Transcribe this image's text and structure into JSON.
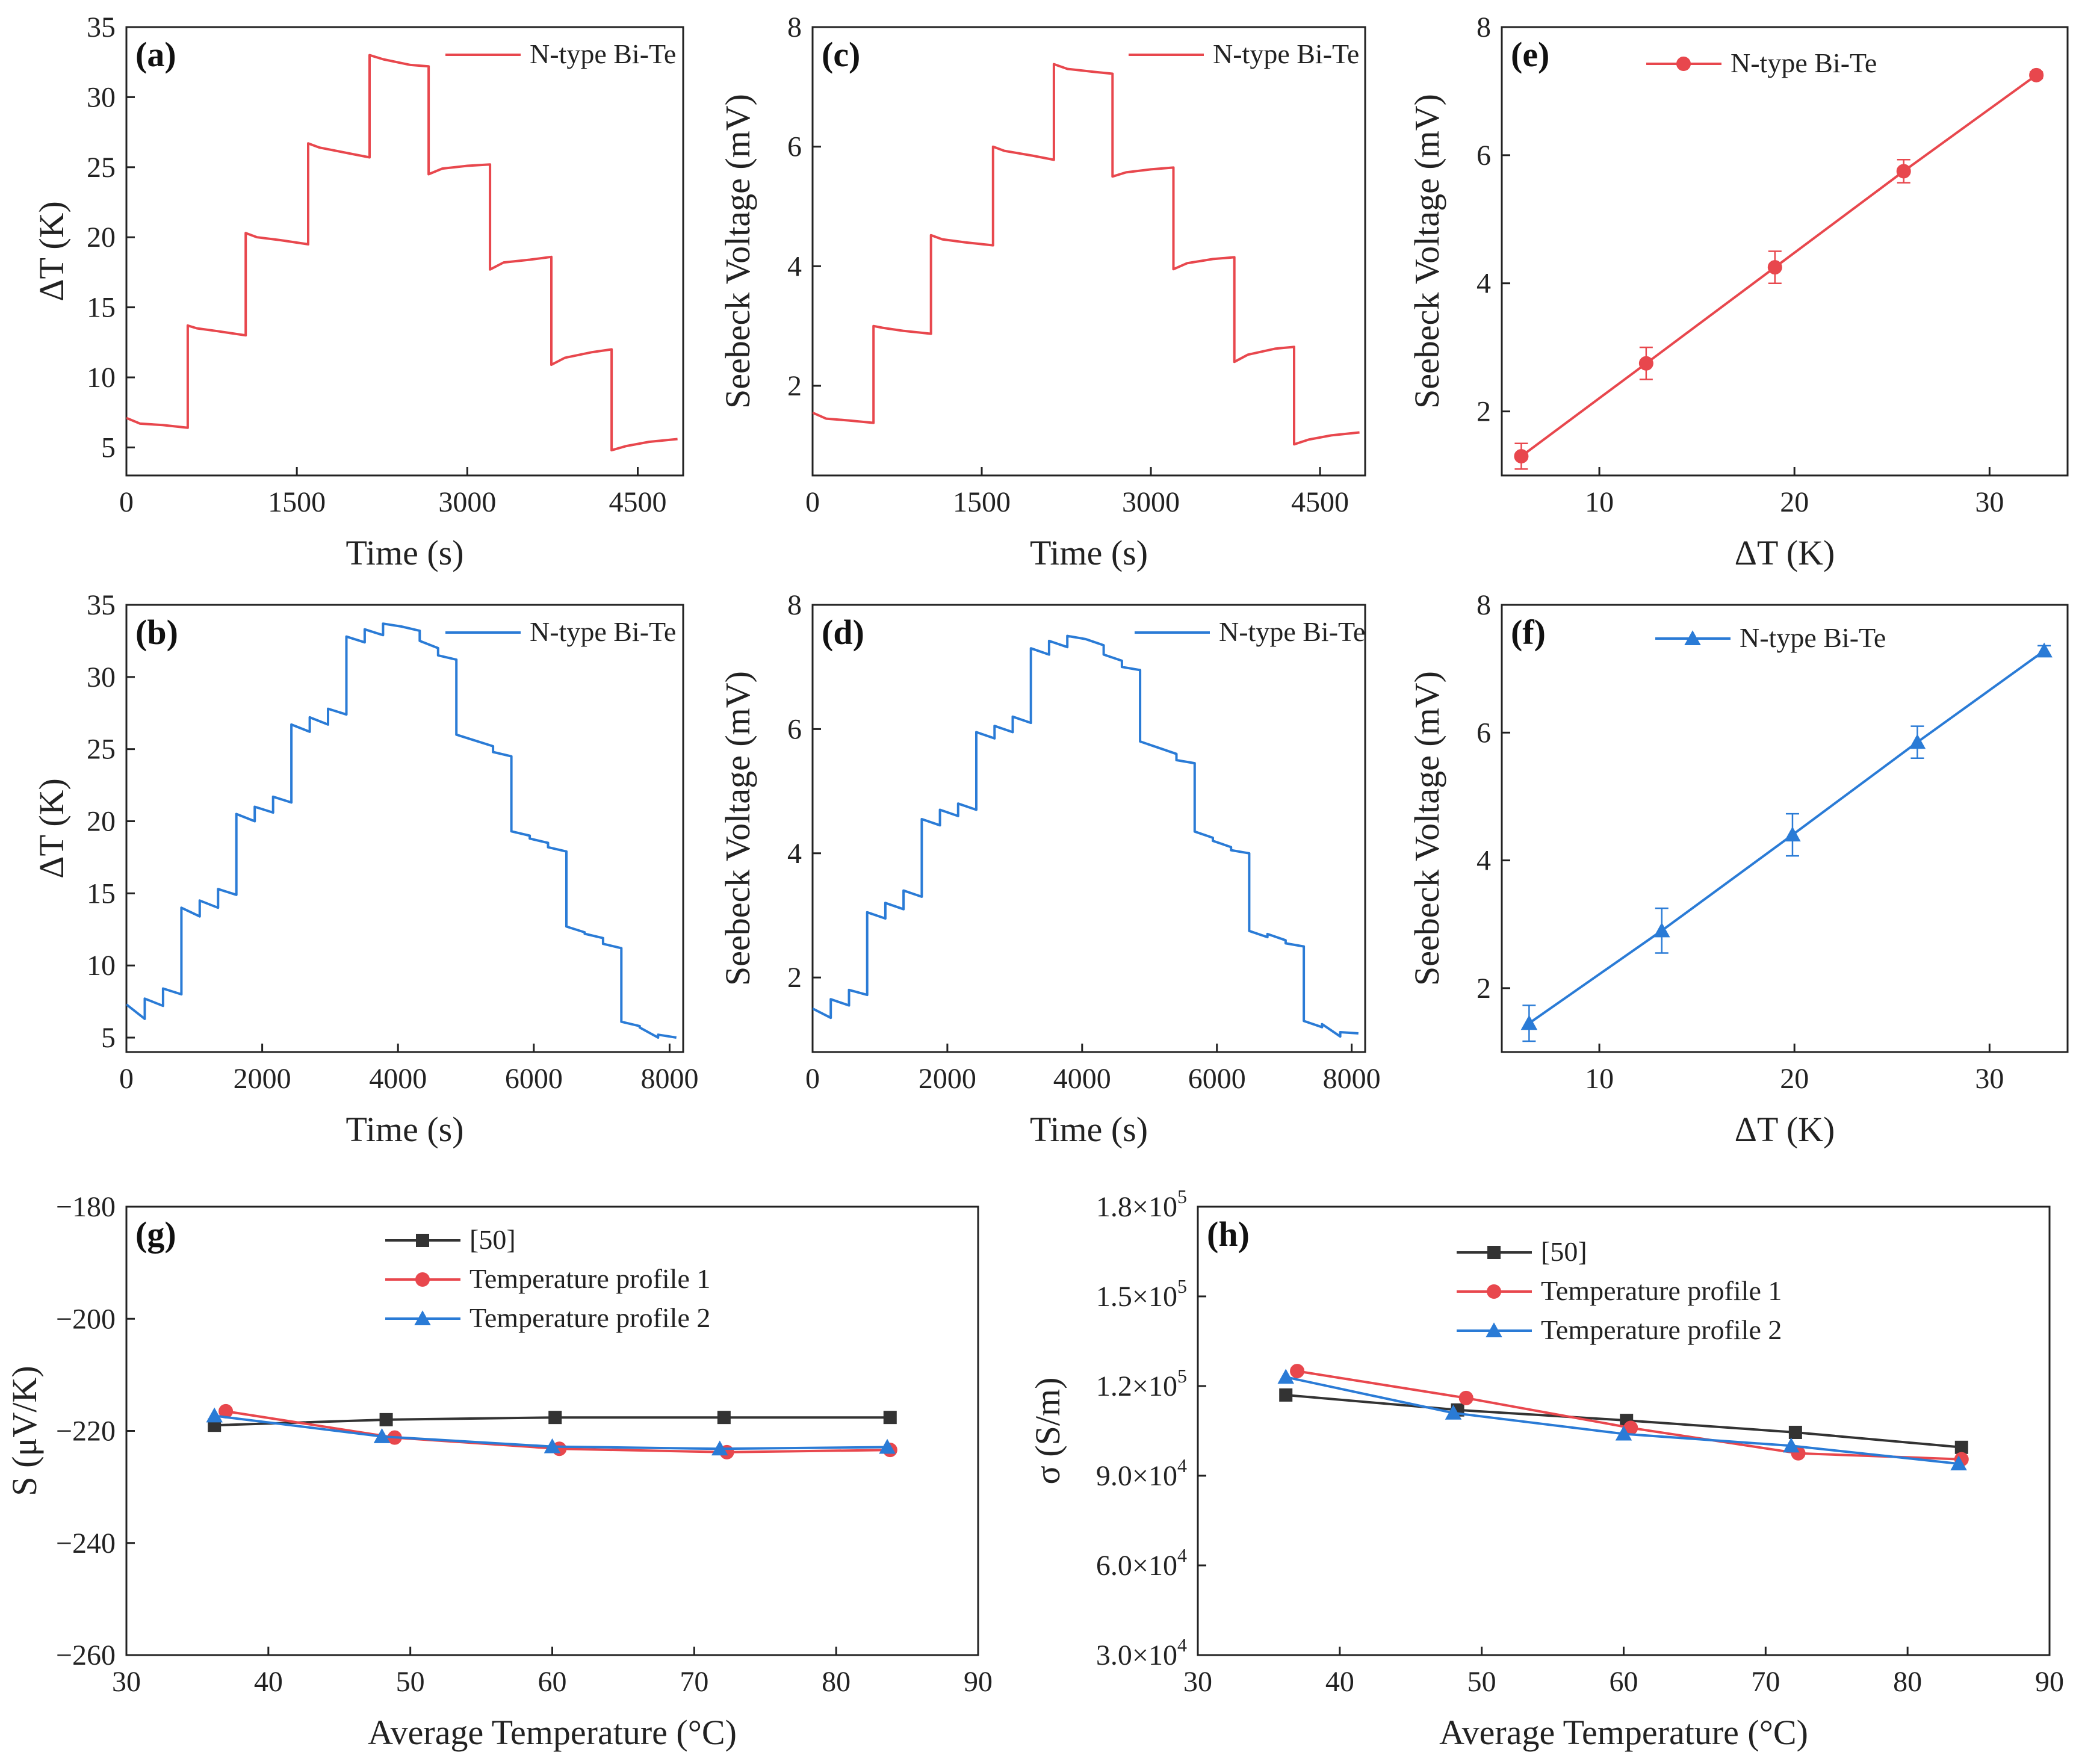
{
  "colors": {
    "red": "#e8474d",
    "blue": "#2a7bd6",
    "black": "#333333"
  },
  "chart_data": [
    {
      "id": "a",
      "panel_label": "(a)",
      "type": "line",
      "xlabel": "Time (s)",
      "ylabel": "ΔT (K)",
      "xlim": [
        0,
        4900
      ],
      "ylim": [
        3,
        35
      ],
      "xticks": [
        0,
        1500,
        3000,
        4500
      ],
      "xtick_labels": [
        "0",
        "1500",
        "3000",
        "4500"
      ],
      "yticks": [
        5,
        10,
        15,
        20,
        25,
        30,
        35
      ],
      "ytick_labels": [
        "5",
        "10",
        "15",
        "20",
        "25",
        "30",
        "35"
      ],
      "legend": [
        "N-type Bi-Te"
      ],
      "legend_position": "top-right",
      "series": [
        {
          "name": "N-type Bi-Te",
          "color": "red",
          "marker": "none",
          "x": [
            0,
            120,
            320,
            540,
            540,
            620,
            800,
            1050,
            1050,
            1150,
            1350,
            1600,
            1600,
            1700,
            1950,
            2140,
            2140,
            2260,
            2500,
            2660,
            2660,
            2780,
            3000,
            3200,
            3200,
            3320,
            3550,
            3740,
            3740,
            3860,
            4100,
            4270,
            4270,
            4400,
            4600,
            4850
          ],
          "y": [
            7.1,
            6.7,
            6.6,
            6.4,
            13.7,
            13.5,
            13.3,
            13.0,
            20.3,
            20.0,
            19.8,
            19.5,
            26.7,
            26.4,
            26.0,
            25.7,
            33.0,
            32.7,
            32.3,
            32.2,
            24.5,
            24.9,
            25.1,
            25.2,
            17.7,
            18.2,
            18.4,
            18.6,
            10.9,
            11.4,
            11.8,
            12.0,
            4.8,
            5.1,
            5.4,
            5.6
          ]
        }
      ]
    },
    {
      "id": "b",
      "panel_label": "(b)",
      "type": "line",
      "xlabel": "Time (s)",
      "ylabel": "ΔT (K)",
      "xlim": [
        0,
        8200
      ],
      "ylim": [
        4,
        35
      ],
      "xticks": [
        0,
        2000,
        4000,
        6000,
        8000
      ],
      "xtick_labels": [
        "0",
        "2000",
        "4000",
        "6000",
        "8000"
      ],
      "yticks": [
        5,
        10,
        15,
        20,
        25,
        30,
        35
      ],
      "ytick_labels": [
        "5",
        "10",
        "15",
        "20",
        "25",
        "30",
        "35"
      ],
      "legend": [
        "N-type Bi-Te"
      ],
      "legend_position": "top-right",
      "series": [
        {
          "name": "N-type Bi-Te",
          "color": "blue",
          "marker": "none",
          "x": [
            0,
            270,
            270,
            540,
            540,
            810,
            810,
            1080,
            1080,
            1350,
            1350,
            1620,
            1620,
            1890,
            1890,
            2160,
            2160,
            2430,
            2430,
            2700,
            2700,
            2970,
            2970,
            3240,
            3240,
            3510,
            3510,
            3780,
            3780,
            4050,
            4050,
            4320,
            4320,
            4590,
            4590,
            4860,
            4860,
            5130,
            5130,
            5400,
            5400,
            5670,
            5670,
            5940,
            5940,
            6210,
            6210,
            6480,
            6480,
            6750,
            6750,
            7020,
            7020,
            7290,
            7290,
            7560,
            7560,
            7830,
            7830,
            8100
          ],
          "y": [
            7.3,
            6.3,
            7.7,
            7.2,
            8.4,
            8.0,
            14.0,
            13.4,
            14.5,
            14.0,
            15.3,
            14.9,
            20.5,
            20.0,
            21.0,
            20.6,
            21.7,
            21.3,
            26.7,
            26.2,
            27.2,
            26.7,
            27.8,
            27.4,
            32.8,
            32.4,
            33.3,
            32.9,
            33.7,
            33.5,
            33.5,
            33.2,
            32.5,
            32.0,
            31.5,
            31.2,
            26.0,
            25.6,
            25.6,
            25.2,
            24.8,
            24.5,
            19.3,
            19.0,
            18.8,
            18.5,
            18.2,
            17.9,
            12.7,
            12.3,
            12.2,
            11.9,
            11.5,
            11.2,
            6.1,
            5.8,
            5.7,
            5.0,
            5.2,
            5.0
          ]
        }
      ]
    },
    {
      "id": "c",
      "panel_label": "(c)",
      "type": "line",
      "xlabel": "Time (s)",
      "ylabel": "Seebeck Voltage (mV)",
      "xlim": [
        0,
        4900
      ],
      "ylim": [
        0.5,
        8
      ],
      "xticks": [
        0,
        1500,
        3000,
        4500
      ],
      "xtick_labels": [
        "0",
        "1500",
        "3000",
        "4500"
      ],
      "yticks": [
        2,
        4,
        6,
        8
      ],
      "ytick_labels": [
        "2",
        "4",
        "6",
        "8"
      ],
      "legend": [
        "N-type Bi-Te"
      ],
      "legend_position": "top-right",
      "series": [
        {
          "name": "N-type Bi-Te",
          "color": "red",
          "marker": "none",
          "x": [
            0,
            120,
            320,
            540,
            540,
            620,
            800,
            1050,
            1050,
            1150,
            1350,
            1600,
            1600,
            1700,
            1950,
            2140,
            2140,
            2260,
            2500,
            2660,
            2660,
            2780,
            3000,
            3200,
            3200,
            3320,
            3550,
            3740,
            3740,
            3860,
            4100,
            4270,
            4270,
            4400,
            4600,
            4850
          ],
          "y": [
            1.55,
            1.45,
            1.42,
            1.38,
            3.0,
            2.97,
            2.92,
            2.87,
            4.52,
            4.45,
            4.4,
            4.35,
            6.0,
            5.93,
            5.85,
            5.78,
            7.38,
            7.3,
            7.25,
            7.22,
            5.5,
            5.57,
            5.62,
            5.65,
            3.95,
            4.05,
            4.12,
            4.15,
            2.4,
            2.52,
            2.62,
            2.65,
            1.02,
            1.1,
            1.17,
            1.22
          ]
        }
      ]
    },
    {
      "id": "d",
      "panel_label": "(d)",
      "type": "line",
      "xlabel": "Time (s)",
      "ylabel": "Seebeck Voltage (mV)",
      "xlim": [
        0,
        8200
      ],
      "ylim": [
        0.8,
        8
      ],
      "xticks": [
        0,
        2000,
        4000,
        6000,
        8000
      ],
      "xtick_labels": [
        "0",
        "2000",
        "4000",
        "6000",
        "8000"
      ],
      "yticks": [
        2,
        4,
        6,
        8
      ],
      "ytick_labels": [
        "2",
        "4",
        "6",
        "8"
      ],
      "legend": [
        "N-type Bi-Te"
      ],
      "legend_position": "top-right",
      "series": [
        {
          "name": "N-type Bi-Te",
          "color": "blue",
          "marker": "none",
          "x": [
            0,
            270,
            270,
            540,
            540,
            810,
            810,
            1080,
            1080,
            1350,
            1350,
            1620,
            1620,
            1890,
            1890,
            2160,
            2160,
            2430,
            2430,
            2700,
            2700,
            2970,
            2970,
            3240,
            3240,
            3510,
            3510,
            3780,
            3780,
            4050,
            4050,
            4320,
            4320,
            4590,
            4590,
            4860,
            4860,
            5130,
            5130,
            5400,
            5400,
            5670,
            5670,
            5940,
            5940,
            6210,
            6210,
            6480,
            6480,
            6750,
            6750,
            7020,
            7020,
            7290,
            7290,
            7560,
            7560,
            7830,
            7830,
            8100
          ],
          "y": [
            1.5,
            1.35,
            1.65,
            1.55,
            1.8,
            1.72,
            3.05,
            2.95,
            3.2,
            3.1,
            3.4,
            3.3,
            4.55,
            4.45,
            4.7,
            4.6,
            4.8,
            4.7,
            5.95,
            5.85,
            6.05,
            5.95,
            6.2,
            6.1,
            7.3,
            7.2,
            7.42,
            7.32,
            7.5,
            7.45,
            7.45,
            7.35,
            7.2,
            7.1,
            7.0,
            6.95,
            5.8,
            5.7,
            5.7,
            5.6,
            5.5,
            5.45,
            4.35,
            4.25,
            4.2,
            4.1,
            4.05,
            4.0,
            2.75,
            2.65,
            2.7,
            2.6,
            2.55,
            2.5,
            1.3,
            1.2,
            1.25,
            1.05,
            1.12,
            1.1
          ]
        }
      ]
    },
    {
      "id": "e",
      "panel_label": "(e)",
      "type": "line",
      "xlabel": "ΔT (K)",
      "ylabel": "Seebeck Voltage (mV)",
      "xlim": [
        5,
        34
      ],
      "ylim": [
        1,
        8
      ],
      "xticks": [
        10,
        20,
        30
      ],
      "xtick_labels": [
        "10",
        "20",
        "30"
      ],
      "yticks": [
        2,
        4,
        6,
        8
      ],
      "ytick_labels": [
        "2",
        "4",
        "6",
        "8"
      ],
      "legend": [
        "N-type Bi-Te"
      ],
      "legend_position": "top-left",
      "series": [
        {
          "name": "N-type Bi-Te",
          "color": "red",
          "marker": "circle",
          "x": [
            6.0,
            12.4,
            19.0,
            25.6,
            32.4
          ],
          "y": [
            1.3,
            2.75,
            4.25,
            5.75,
            7.25
          ],
          "err": [
            0.2,
            0.25,
            0.25,
            0.18,
            0.05
          ]
        }
      ]
    },
    {
      "id": "f",
      "panel_label": "(f)",
      "type": "line",
      "xlabel": "ΔT (K)",
      "ylabel": "Seebeck Voltage (mV)",
      "xlim": [
        5,
        34
      ],
      "ylim": [
        1,
        8
      ],
      "xticks": [
        10,
        20,
        30
      ],
      "xtick_labels": [
        "10",
        "20",
        "30"
      ],
      "yticks": [
        2,
        4,
        6,
        8
      ],
      "ytick_labels": [
        "2",
        "4",
        "6",
        "8"
      ],
      "legend": [
        "N-type Bi-Te"
      ],
      "legend_position": "top-left",
      "series": [
        {
          "name": "N-type Bi-Te",
          "color": "blue",
          "marker": "triangle",
          "x": [
            6.4,
            13.2,
            19.9,
            26.3,
            32.8
          ],
          "y": [
            1.45,
            2.9,
            4.4,
            5.85,
            7.28
          ],
          "err": [
            0.28,
            0.35,
            0.33,
            0.25,
            0.08
          ]
        }
      ]
    },
    {
      "id": "g",
      "panel_label": "(g)",
      "type": "line",
      "xlabel": "Average Temperature (°C)",
      "ylabel": "S (μV/K)",
      "xlim": [
        30,
        90
      ],
      "ylim": [
        -260,
        -180
      ],
      "xticks": [
        30,
        40,
        50,
        60,
        70,
        80,
        90
      ],
      "xtick_labels": [
        "30",
        "40",
        "50",
        "60",
        "70",
        "80",
        "90"
      ],
      "yticks": [
        -260,
        -240,
        -220,
        -200,
        -180
      ],
      "ytick_labels": [
        "−260",
        "−240",
        "−220",
        "−200",
        "−180"
      ],
      "legend": [
        "[50]",
        "Temperature profile 1",
        "Temperature profile 2"
      ],
      "legend_position": "top-center",
      "series": [
        {
          "name": "[50]",
          "color": "black",
          "marker": "square",
          "x": [
            36.2,
            48.3,
            60.2,
            72.1,
            83.8
          ],
          "y": [
            -219.0,
            -218.0,
            -217.6,
            -217.6,
            -217.6
          ]
        },
        {
          "name": "Temperature profile 1",
          "color": "red",
          "marker": "circle",
          "x": [
            37.0,
            48.9,
            60.5,
            72.3,
            83.8
          ],
          "y": [
            -216.5,
            -221.2,
            -223.2,
            -223.8,
            -223.4
          ]
        },
        {
          "name": "Temperature profile 2",
          "color": "blue",
          "marker": "triangle",
          "x": [
            36.2,
            48.0,
            60.0,
            71.8,
            83.6
          ],
          "y": [
            -217.3,
            -221.0,
            -222.8,
            -223.2,
            -222.9
          ]
        }
      ]
    },
    {
      "id": "h",
      "panel_label": "(h)",
      "type": "line",
      "xlabel": "Average Temperature (°C)",
      "ylabel": "σ (S/m)",
      "xlim": [
        30,
        90
      ],
      "ylim": [
        30000,
        180000
      ],
      "xticks": [
        30,
        40,
        50,
        60,
        70,
        80,
        90
      ],
      "xtick_labels": [
        "30",
        "40",
        "50",
        "60",
        "70",
        "80",
        "90"
      ],
      "yticks": [
        30000,
        60000,
        90000,
        120000,
        150000,
        180000
      ],
      "ytick_mantissas": [
        "3.0×10",
        "6.0×10",
        "9.0×10",
        "1.2×10",
        "1.5×10",
        "1.8×10"
      ],
      "ytick_exponents": [
        "4",
        "4",
        "4",
        "5",
        "5",
        "5"
      ],
      "legend": [
        "[50]",
        "Temperature profile 1",
        "Temperature profile 2"
      ],
      "legend_position": "top-center",
      "series": [
        {
          "name": "[50]",
          "color": "black",
          "marker": "square",
          "x": [
            36.2,
            48.3,
            60.2,
            72.1,
            83.8
          ],
          "y": [
            117000,
            112000,
            108500,
            104500,
            99500
          ]
        },
        {
          "name": "Temperature profile 1",
          "color": "red",
          "marker": "circle",
          "x": [
            37.0,
            48.9,
            60.5,
            72.3,
            83.8
          ],
          "y": [
            125000,
            116000,
            106000,
            97500,
            95500
          ]
        },
        {
          "name": "Temperature profile 2",
          "color": "blue",
          "marker": "triangle",
          "x": [
            36.2,
            48.0,
            60.0,
            71.8,
            83.6
          ],
          "y": [
            123000,
            111000,
            104000,
            100000,
            94000
          ]
        }
      ]
    }
  ]
}
